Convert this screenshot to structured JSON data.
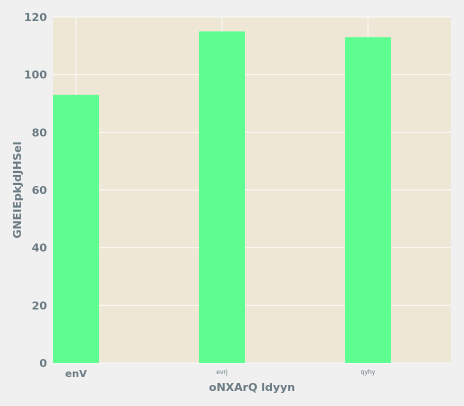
{
  "chart_data": {
    "type": "bar",
    "categories": [
      "enV",
      "evrj",
      "qyhy"
    ],
    "values": [
      93,
      115,
      113
    ],
    "title": "",
    "xlabel": "oNXArQ  ldyyn",
    "ylabel": "GNEIEpkJdJHSel",
    "ylim": [
      0,
      120
    ],
    "yticks": [
      0,
      20,
      40,
      60,
      80,
      100,
      120
    ],
    "grid": true,
    "legend": "none"
  },
  "colors": {
    "bar": "#5dfd91",
    "plot_background": "#efe7d6",
    "page_background": "#f0f0f0",
    "text": "#6b7b84",
    "grid": "#ffffff"
  }
}
